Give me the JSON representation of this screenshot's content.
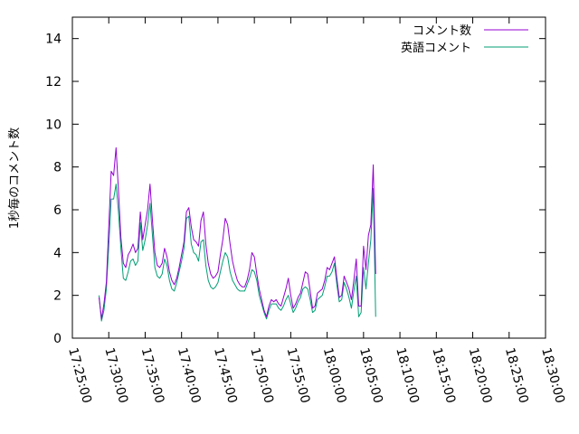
{
  "chart_data": {
    "type": "line",
    "ylabel": "1秒毎のコメント数",
    "ylim": [
      0,
      15
    ],
    "xlim": [
      "17:25:00",
      "18:30:00"
    ],
    "y_ticks": [
      0,
      2,
      4,
      6,
      8,
      10,
      12,
      14
    ],
    "y_tick_labels": [
      "0",
      "2",
      "4",
      "6",
      "8",
      "10",
      "12",
      "14"
    ],
    "x_ticks": [
      "17:25:00",
      "17:30:00",
      "17:35:00",
      "17:40:00",
      "17:45:00",
      "17:50:00",
      "17:55:00",
      "18:00:00",
      "18:05:00",
      "18:10:00",
      "18:15:00",
      "18:20:00",
      "18:25:00",
      "18:30:00"
    ],
    "grid": false,
    "legend_position": "top-right",
    "series": [
      {
        "name": "コメント数",
        "color": "#9400d3",
        "points": [
          [
            "17:28:40",
            1.9
          ],
          [
            "17:29:00",
            0.9
          ],
          [
            "17:29:20",
            1.6
          ],
          [
            "17:29:40",
            2.6
          ],
          [
            "17:30:00",
            5.2
          ],
          [
            "17:30:20",
            7.8
          ],
          [
            "17:30:40",
            7.6
          ],
          [
            "17:31:00",
            8.9
          ],
          [
            "17:31:20",
            6.9
          ],
          [
            "17:31:40",
            4.7
          ],
          [
            "17:32:00",
            3.5
          ],
          [
            "17:32:20",
            3.3
          ],
          [
            "17:32:40",
            3.9
          ],
          [
            "17:33:00",
            4.1
          ],
          [
            "17:33:20",
            4.4
          ],
          [
            "17:33:40",
            4.0
          ],
          [
            "17:34:00",
            4.2
          ],
          [
            "17:34:20",
            5.9
          ],
          [
            "17:34:40",
            4.6
          ],
          [
            "17:35:00",
            5.3
          ],
          [
            "17:35:20",
            6.0
          ],
          [
            "17:35:40",
            7.2
          ],
          [
            "17:36:00",
            5.5
          ],
          [
            "17:36:20",
            4.0
          ],
          [
            "17:36:40",
            3.4
          ],
          [
            "17:37:00",
            3.3
          ],
          [
            "17:37:20",
            3.5
          ],
          [
            "17:37:40",
            4.2
          ],
          [
            "17:38:00",
            3.8
          ],
          [
            "17:38:20",
            3.1
          ],
          [
            "17:38:40",
            2.7
          ],
          [
            "17:39:00",
            2.5
          ],
          [
            "17:39:20",
            2.8
          ],
          [
            "17:39:40",
            3.3
          ],
          [
            "17:40:00",
            3.9
          ],
          [
            "17:40:20",
            4.5
          ],
          [
            "17:40:40",
            5.9
          ],
          [
            "17:41:00",
            6.1
          ],
          [
            "17:41:20",
            5.2
          ],
          [
            "17:41:40",
            4.6
          ],
          [
            "17:42:00",
            4.5
          ],
          [
            "17:42:20",
            4.3
          ],
          [
            "17:42:40",
            5.5
          ],
          [
            "17:43:00",
            5.9
          ],
          [
            "17:43:20",
            4.4
          ],
          [
            "17:43:40",
            3.5
          ],
          [
            "17:44:00",
            3.0
          ],
          [
            "17:44:20",
            2.8
          ],
          [
            "17:44:40",
            2.9
          ],
          [
            "17:45:00",
            3.1
          ],
          [
            "17:45:20",
            3.9
          ],
          [
            "17:45:40",
            4.6
          ],
          [
            "17:46:00",
            5.6
          ],
          [
            "17:46:20",
            5.3
          ],
          [
            "17:46:40",
            4.4
          ],
          [
            "17:47:00",
            3.6
          ],
          [
            "17:47:20",
            3.1
          ],
          [
            "17:47:40",
            2.7
          ],
          [
            "17:48:00",
            2.5
          ],
          [
            "17:48:20",
            2.4
          ],
          [
            "17:48:40",
            2.4
          ],
          [
            "17:49:00",
            2.7
          ],
          [
            "17:49:20",
            3.2
          ],
          [
            "17:49:40",
            4.0
          ],
          [
            "17:50:00",
            3.8
          ],
          [
            "17:50:20",
            3.0
          ],
          [
            "17:50:40",
            2.3
          ],
          [
            "17:51:00",
            1.8
          ],
          [
            "17:51:20",
            1.3
          ],
          [
            "17:51:40",
            1.0
          ],
          [
            "17:52:00",
            1.5
          ],
          [
            "17:52:20",
            1.8
          ],
          [
            "17:52:40",
            1.7
          ],
          [
            "17:53:00",
            1.8
          ],
          [
            "17:53:20",
            1.6
          ],
          [
            "17:53:40",
            1.5
          ],
          [
            "17:54:00",
            1.9
          ],
          [
            "17:54:20",
            2.3
          ],
          [
            "17:54:40",
            2.8
          ],
          [
            "17:55:00",
            2.0
          ],
          [
            "17:55:20",
            1.4
          ],
          [
            "17:55:40",
            1.6
          ],
          [
            "17:56:00",
            1.9
          ],
          [
            "17:56:20",
            2.1
          ],
          [
            "17:56:40",
            2.6
          ],
          [
            "17:57:00",
            3.1
          ],
          [
            "17:57:20",
            3.0
          ],
          [
            "17:57:40",
            2.2
          ],
          [
            "17:58:00",
            1.4
          ],
          [
            "17:58:20",
            1.5
          ],
          [
            "17:58:40",
            2.1
          ],
          [
            "17:59:00",
            2.2
          ],
          [
            "17:59:20",
            2.3
          ],
          [
            "17:59:40",
            2.7
          ],
          [
            "18:00:00",
            3.3
          ],
          [
            "18:00:20",
            3.2
          ],
          [
            "18:00:40",
            3.5
          ],
          [
            "18:01:00",
            3.8
          ],
          [
            "18:01:20",
            2.8
          ],
          [
            "18:01:40",
            1.9
          ],
          [
            "18:02:00",
            2.0
          ],
          [
            "18:02:20",
            2.9
          ],
          [
            "18:02:40",
            2.6
          ],
          [
            "18:03:00",
            2.3
          ],
          [
            "18:03:20",
            1.8
          ],
          [
            "18:03:40",
            2.7
          ],
          [
            "18:04:00",
            3.7
          ],
          [
            "18:04:20",
            1.5
          ],
          [
            "18:04:40",
            1.5
          ],
          [
            "18:05:00",
            4.3
          ],
          [
            "18:05:20",
            3.2
          ],
          [
            "18:05:40",
            4.8
          ],
          [
            "18:06:00",
            5.3
          ],
          [
            "18:06:20",
            8.1
          ],
          [
            "18:06:40",
            3.0
          ]
        ]
      },
      {
        "name": "英語コメント",
        "color": "#009e73",
        "points": [
          [
            "17:28:40",
            2.0
          ],
          [
            "17:29:00",
            0.8
          ],
          [
            "17:29:20",
            1.3
          ],
          [
            "17:29:40",
            2.3
          ],
          [
            "17:30:00",
            4.3
          ],
          [
            "17:30:20",
            6.5
          ],
          [
            "17:30:40",
            6.5
          ],
          [
            "17:31:00",
            7.2
          ],
          [
            "17:31:20",
            5.9
          ],
          [
            "17:31:40",
            4.2
          ],
          [
            "17:32:00",
            2.8
          ],
          [
            "17:32:20",
            2.7
          ],
          [
            "17:32:40",
            3.1
          ],
          [
            "17:33:00",
            3.6
          ],
          [
            "17:33:20",
            3.7
          ],
          [
            "17:33:40",
            3.4
          ],
          [
            "17:34:00",
            3.6
          ],
          [
            "17:34:20",
            5.4
          ],
          [
            "17:34:40",
            4.1
          ],
          [
            "17:35:00",
            4.6
          ],
          [
            "17:35:20",
            5.3
          ],
          [
            "17:35:40",
            6.3
          ],
          [
            "17:36:00",
            4.8
          ],
          [
            "17:36:20",
            3.3
          ],
          [
            "17:36:40",
            2.9
          ],
          [
            "17:37:00",
            2.8
          ],
          [
            "17:37:20",
            3.0
          ],
          [
            "17:37:40",
            3.7
          ],
          [
            "17:38:00",
            3.4
          ],
          [
            "17:38:20",
            2.7
          ],
          [
            "17:38:40",
            2.3
          ],
          [
            "17:39:00",
            2.2
          ],
          [
            "17:39:20",
            2.6
          ],
          [
            "17:39:40",
            3.1
          ],
          [
            "17:40:00",
            3.6
          ],
          [
            "17:40:20",
            4.2
          ],
          [
            "17:40:40",
            5.6
          ],
          [
            "17:41:00",
            5.7
          ],
          [
            "17:41:20",
            4.4
          ],
          [
            "17:41:40",
            4.0
          ],
          [
            "17:42:00",
            3.9
          ],
          [
            "17:42:20",
            3.6
          ],
          [
            "17:42:40",
            4.5
          ],
          [
            "17:43:00",
            4.6
          ],
          [
            "17:43:20",
            3.4
          ],
          [
            "17:43:40",
            2.7
          ],
          [
            "17:44:00",
            2.4
          ],
          [
            "17:44:20",
            2.3
          ],
          [
            "17:44:40",
            2.4
          ],
          [
            "17:45:00",
            2.6
          ],
          [
            "17:45:20",
            3.1
          ],
          [
            "17:45:40",
            3.6
          ],
          [
            "17:46:00",
            4.0
          ],
          [
            "17:46:20",
            3.8
          ],
          [
            "17:46:40",
            3.1
          ],
          [
            "17:47:00",
            2.7
          ],
          [
            "17:47:20",
            2.5
          ],
          [
            "17:47:40",
            2.3
          ],
          [
            "17:48:00",
            2.2
          ],
          [
            "17:48:20",
            2.2
          ],
          [
            "17:48:40",
            2.2
          ],
          [
            "17:49:00",
            2.5
          ],
          [
            "17:49:20",
            2.8
          ],
          [
            "17:49:40",
            3.2
          ],
          [
            "17:50:00",
            3.1
          ],
          [
            "17:50:20",
            2.7
          ],
          [
            "17:50:40",
            2.0
          ],
          [
            "17:51:00",
            1.6
          ],
          [
            "17:51:20",
            1.2
          ],
          [
            "17:51:40",
            0.9
          ],
          [
            "17:52:00",
            1.3
          ],
          [
            "17:52:20",
            1.6
          ],
          [
            "17:52:40",
            1.6
          ],
          [
            "17:53:00",
            1.6
          ],
          [
            "17:53:20",
            1.4
          ],
          [
            "17:53:40",
            1.3
          ],
          [
            "17:54:00",
            1.5
          ],
          [
            "17:54:20",
            1.8
          ],
          [
            "17:54:40",
            2.0
          ],
          [
            "17:55:00",
            1.6
          ],
          [
            "17:55:20",
            1.2
          ],
          [
            "17:55:40",
            1.4
          ],
          [
            "17:56:00",
            1.7
          ],
          [
            "17:56:20",
            1.9
          ],
          [
            "17:56:40",
            2.3
          ],
          [
            "17:57:00",
            2.4
          ],
          [
            "17:57:20",
            2.3
          ],
          [
            "17:57:40",
            1.8
          ],
          [
            "17:58:00",
            1.2
          ],
          [
            "17:58:20",
            1.3
          ],
          [
            "17:58:40",
            1.8
          ],
          [
            "17:59:00",
            1.9
          ],
          [
            "17:59:20",
            2.0
          ],
          [
            "17:59:40",
            2.4
          ],
          [
            "18:00:00",
            2.9
          ],
          [
            "18:00:20",
            2.9
          ],
          [
            "18:00:40",
            3.1
          ],
          [
            "18:01:00",
            3.5
          ],
          [
            "18:01:20",
            2.5
          ],
          [
            "18:01:40",
            1.7
          ],
          [
            "18:02:00",
            1.8
          ],
          [
            "18:02:20",
            2.6
          ],
          [
            "18:02:40",
            2.3
          ],
          [
            "18:03:00",
            1.9
          ],
          [
            "18:03:20",
            1.4
          ],
          [
            "18:03:40",
            2.2
          ],
          [
            "18:04:00",
            2.9
          ],
          [
            "18:04:20",
            1.0
          ],
          [
            "18:04:40",
            1.2
          ],
          [
            "18:05:00",
            3.3
          ],
          [
            "18:05:20",
            2.3
          ],
          [
            "18:05:40",
            3.5
          ],
          [
            "18:06:00",
            4.6
          ],
          [
            "18:06:20",
            7.0
          ],
          [
            "18:06:40",
            1.0
          ]
        ]
      }
    ]
  }
}
